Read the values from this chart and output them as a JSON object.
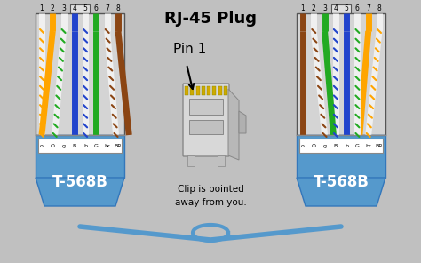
{
  "bg_color": "#c0c0c0",
  "title": "RJ-45 Plug",
  "pin1_label": "Pin 1",
  "clip_label": "Clip is pointed\naway from you.",
  "t568b_label": "T-568B",
  "wire_labels": [
    "o",
    "O",
    "g",
    "B",
    "b",
    "G",
    "br",
    "BR"
  ],
  "pin_numbers": [
    "1",
    "2",
    "3",
    "4",
    "5",
    "6",
    "7",
    "8"
  ],
  "connector_blue": "#5599cc",
  "wire_colors": [
    "#f0f0f0",
    "#FFA500",
    "#f0f0f0",
    "#2244cc",
    "#f0f0f0",
    "#22aa22",
    "#f0f0f0",
    "#8B4513"
  ],
  "stripe_colors": [
    "#FFA500",
    null,
    "#22aa22",
    null,
    "#2244cc",
    null,
    "#8B4513",
    null
  ],
  "lc": "#555555"
}
